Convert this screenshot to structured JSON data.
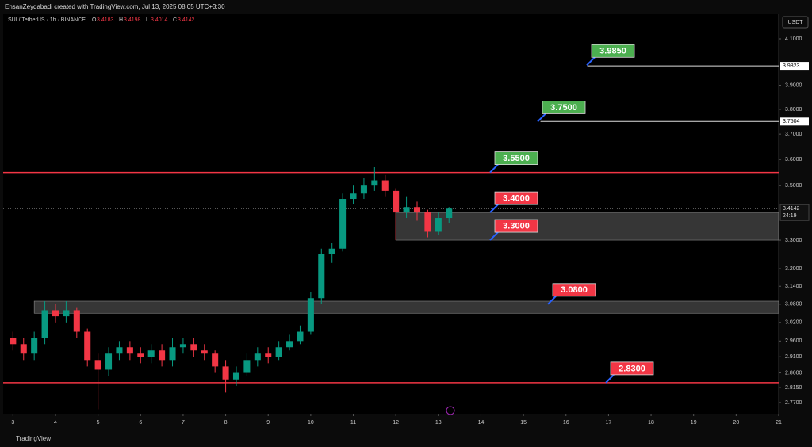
{
  "chart_data": {
    "type": "candlestick",
    "header": "EhsanZeydabadi created with TradingView.com, Jul 13, 2025 08:05 UTC+3:30",
    "symbol": "SUI / TetherUS · 1h · BINANCE",
    "ohlc": [
      {
        "key": "O",
        "value": 3.4183
      },
      {
        "key": "H",
        "value": 3.4198
      },
      {
        "key": "L",
        "value": 3.4014
      },
      {
        "key": "C",
        "value": 3.4142
      }
    ],
    "currency": "USDT",
    "brand": "TradingView",
    "log_scale": true,
    "up_color": "#089981",
    "down_color": "#f23645",
    "x": [
      3.0,
      3.25,
      3.5,
      3.75,
      4.0,
      4.25,
      4.5,
      4.75,
      5.0,
      5.25,
      5.5,
      5.75,
      6.0,
      6.25,
      6.5,
      6.75,
      7.0,
      7.25,
      7.5,
      7.75,
      8.0,
      8.25,
      8.5,
      8.75,
      9.0,
      9.25,
      9.5,
      9.75,
      10.0,
      10.25,
      10.5,
      10.75,
      11.0,
      11.25,
      11.5,
      11.75,
      12.0,
      12.25,
      12.5,
      12.75,
      13.0,
      13.25
    ],
    "open": [
      2.97,
      2.95,
      2.92,
      2.97,
      3.06,
      3.04,
      3.06,
      2.99,
      2.9,
      2.87,
      2.92,
      2.94,
      2.92,
      2.91,
      2.93,
      2.9,
      2.94,
      2.95,
      2.93,
      2.92,
      2.88,
      2.84,
      2.86,
      2.9,
      2.92,
      2.91,
      2.94,
      2.96,
      2.99,
      3.1,
      3.25,
      3.27,
      3.45,
      3.47,
      3.5,
      3.52,
      3.48,
      3.4,
      3.42,
      3.4,
      3.33,
      3.38
    ],
    "high": [
      2.99,
      2.97,
      2.99,
      3.09,
      3.08,
      3.09,
      3.07,
      3.0,
      2.92,
      2.94,
      2.96,
      2.96,
      2.94,
      2.95,
      2.95,
      2.97,
      2.97,
      2.97,
      2.95,
      2.93,
      2.9,
      2.88,
      2.92,
      2.94,
      2.94,
      2.96,
      2.98,
      3.01,
      3.12,
      3.27,
      3.29,
      3.47,
      3.5,
      3.53,
      3.57,
      3.54,
      3.49,
      3.46,
      3.44,
      3.41,
      3.4,
      3.42
    ],
    "low": [
      2.93,
      2.9,
      2.9,
      2.95,
      3.02,
      3.02,
      2.97,
      2.88,
      2.75,
      2.85,
      2.9,
      2.9,
      2.89,
      2.89,
      2.88,
      2.88,
      2.92,
      2.91,
      2.9,
      2.86,
      2.8,
      2.82,
      2.85,
      2.88,
      2.89,
      2.9,
      2.93,
      2.95,
      2.98,
      3.08,
      3.22,
      3.26,
      3.43,
      3.45,
      3.48,
      3.46,
      3.3,
      3.38,
      3.37,
      3.31,
      3.32,
      3.36
    ],
    "close": [
      2.95,
      2.92,
      2.97,
      3.06,
      3.04,
      3.06,
      2.99,
      2.9,
      2.87,
      2.92,
      2.94,
      2.92,
      2.91,
      2.93,
      2.9,
      2.94,
      2.95,
      2.93,
      2.92,
      2.88,
      2.84,
      2.86,
      2.9,
      2.92,
      2.91,
      2.94,
      2.96,
      2.99,
      3.1,
      3.25,
      3.27,
      3.45,
      3.47,
      3.5,
      3.52,
      3.48,
      3.4,
      3.42,
      3.4,
      3.33,
      3.38,
      3.4142
    ],
    "xlim": [
      2.77,
      21.0
    ],
    "xticks": [
      3,
      4,
      5,
      6,
      7,
      8,
      9,
      10,
      11,
      12,
      13,
      14,
      15,
      16,
      17,
      18,
      19,
      20,
      21
    ],
    "ylim": [
      2.737,
      4.21
    ],
    "yticks": [
      {
        "value": 4.1,
        "label": "4.1000"
      },
      {
        "value": 3.9,
        "label": "3.9000"
      },
      {
        "value": 3.8,
        "label": "3.8000"
      },
      {
        "value": 3.7,
        "label": "3.7000"
      },
      {
        "value": 3.6,
        "label": "3.6000"
      },
      {
        "value": 3.5,
        "label": "3.5000"
      },
      {
        "value": 3.3,
        "label": "3.3000"
      },
      {
        "value": 3.2,
        "label": "3.2000"
      },
      {
        "value": 3.14,
        "label": "3.1400"
      },
      {
        "value": 3.08,
        "label": "3.0800"
      },
      {
        "value": 3.02,
        "label": "3.0200"
      },
      {
        "value": 2.96,
        "label": "2.9600"
      },
      {
        "value": 2.91,
        "label": "2.9100"
      },
      {
        "value": 2.86,
        "label": "2.8600"
      },
      {
        "value": 2.815,
        "label": "2.8150"
      },
      {
        "value": 2.77,
        "label": "2.7700"
      }
    ],
    "lines": [
      {
        "value": 3.55,
        "color": "#f23645"
      },
      {
        "value": 2.83,
        "color": "#f23645"
      }
    ],
    "rays": [
      {
        "value": 3.9823,
        "start": 16.5
      },
      {
        "value": 3.7504,
        "start": 15.4
      }
    ],
    "zones": [
      {
        "low": 3.3,
        "high": 3.4,
        "start": 12.0
      },
      {
        "low": 3.05,
        "high": 3.09,
        "start": 3.5
      }
    ],
    "last_price": 3.4142,
    "countdown": "24:19",
    "levels": [
      {
        "value": 3.985,
        "label": "3.9850",
        "color": "#4caf50"
      },
      {
        "value": 3.75,
        "label": "3.7500",
        "color": "#4caf50"
      },
      {
        "value": 3.55,
        "label": "3.5500",
        "color": "#4caf50"
      },
      {
        "value": 3.4,
        "label": "3.4000",
        "color": "#f23645"
      },
      {
        "value": 3.3,
        "label": "3.3000",
        "color": "#f23645"
      },
      {
        "value": 3.08,
        "label": "3.0800",
        "color": "#f23645"
      },
      {
        "value": 2.83,
        "label": "2.8300",
        "color": "#f23645"
      }
    ]
  }
}
